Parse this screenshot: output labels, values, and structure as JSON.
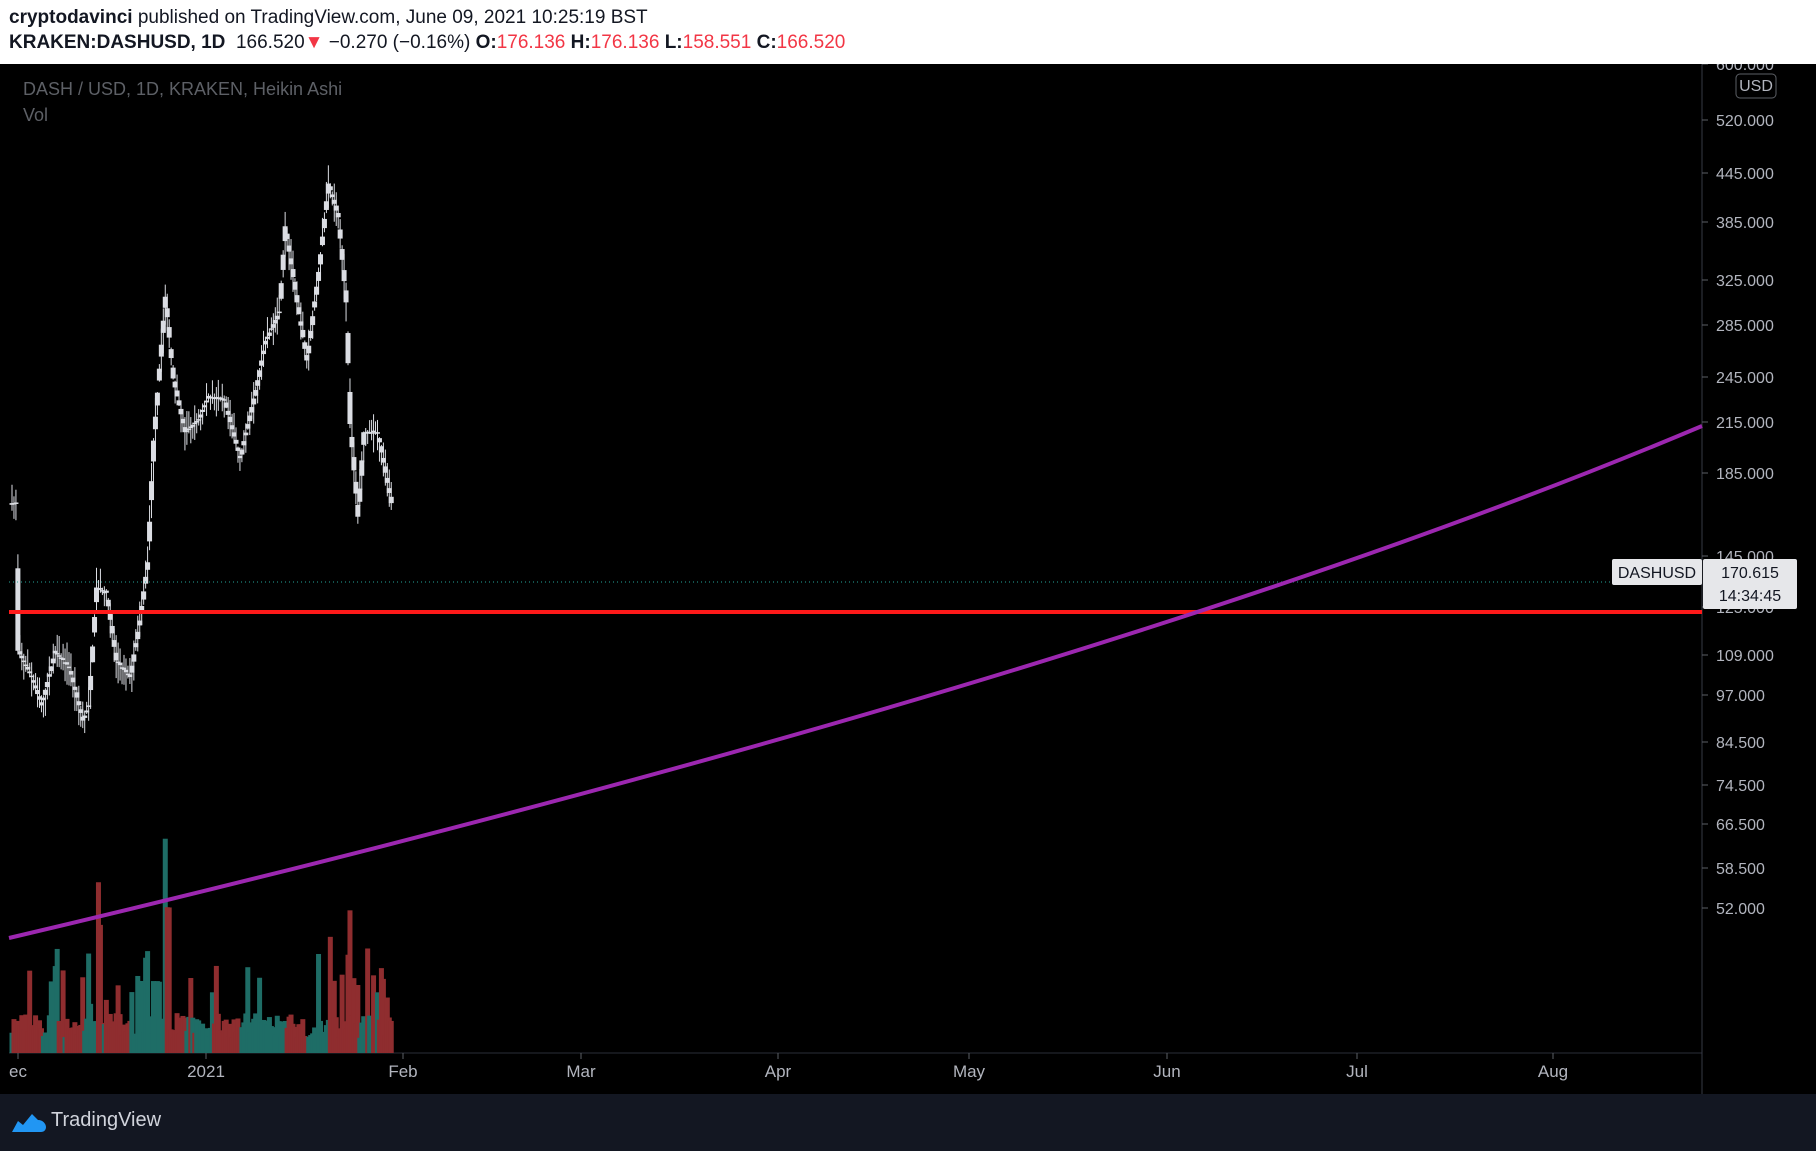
{
  "header": {
    "author": "cryptodavinci",
    "published_text": " published on TradingView.com, June 09, 2021 10:25:19 BST",
    "symbol": "KRAKEN:DASHUSD, 1D",
    "last": "166.520",
    "change": "−0.270 (−0.16%)",
    "o_label": "O:",
    "o_val": "176.136",
    "h_label": "H:",
    "h_val": "176.136",
    "l_label": "L:",
    "l_val": "158.551",
    "c_label": "C:",
    "c_val": "166.520"
  },
  "legend": {
    "title": "DASH / USD, 1D, KRAKEN, Heikin Ashi",
    "volume": "Vol"
  },
  "colors": {
    "candle_body": "#dbdde3",
    "vol_up": "#1e6d66",
    "vol_down": "#8f2d2f",
    "support_line": "#ff1a1a",
    "trend_line": "#9c27b0",
    "price_line": "#26a69a"
  },
  "price_axis": {
    "currency": "USD",
    "labels": [
      "600.000",
      "520.000",
      "445.000",
      "385.000",
      "325.000",
      "285.000",
      "245.000",
      "215.000",
      "185.000",
      "145.000",
      "125.000",
      "109.000",
      "97.000",
      "84.500",
      "74.500",
      "66.500",
      "58.500",
      "52.000"
    ]
  },
  "time_axis": {
    "labels": [
      "ec",
      "2021",
      "Feb",
      "Mar",
      "Apr",
      "May",
      "Jun",
      "Jul",
      "Aug"
    ]
  },
  "price_tag": {
    "symbol": "DASHUSD",
    "price": "170.615",
    "countdown": "14:34:45"
  },
  "footer": {
    "brand": "TradingView"
  },
  "chart_data": {
    "type": "candlestick",
    "title": "DASH / USD, 1D, KRAKEN, Heikin Ashi",
    "scale": "log",
    "ylim": [
      50,
      600
    ],
    "x_range": [
      "2020-12-01",
      "2021-08-31"
    ],
    "support_level": 155,
    "trend_line": [
      {
        "date": "2020-12-01",
        "value": 68
      },
      {
        "date": "2021-06-09",
        "value": 155
      },
      {
        "date": "2021-08-31",
        "value": 245
      }
    ],
    "current_price": 170.615,
    "close_series": [
      {
        "date": "2020-12-01",
        "value": 108
      },
      {
        "date": "2020-12-08",
        "value": 100
      },
      {
        "date": "2020-12-13",
        "value": 92
      },
      {
        "date": "2020-12-20",
        "value": 108
      },
      {
        "date": "2020-12-27",
        "value": 103
      },
      {
        "date": "2021-01-03",
        "value": 88
      },
      {
        "date": "2021-01-06",
        "value": 92
      },
      {
        "date": "2021-01-10",
        "value": 130
      },
      {
        "date": "2021-01-15",
        "value": 128
      },
      {
        "date": "2021-01-20",
        "value": 105
      },
      {
        "date": "2021-01-27",
        "value": 100
      },
      {
        "date": "2021-02-01",
        "value": 118
      },
      {
        "date": "2021-02-05",
        "value": 140
      },
      {
        "date": "2021-02-08",
        "value": 200
      },
      {
        "date": "2021-02-14",
        "value": 305
      },
      {
        "date": "2021-02-18",
        "value": 240
      },
      {
        "date": "2021-02-24",
        "value": 205
      },
      {
        "date": "2021-03-03",
        "value": 213
      },
      {
        "date": "2021-03-08",
        "value": 228
      },
      {
        "date": "2021-03-16",
        "value": 225
      },
      {
        "date": "2021-03-24",
        "value": 190
      },
      {
        "date": "2021-04-01",
        "value": 232
      },
      {
        "date": "2021-04-06",
        "value": 268
      },
      {
        "date": "2021-04-13",
        "value": 292
      },
      {
        "date": "2021-04-16",
        "value": 375
      },
      {
        "date": "2021-04-22",
        "value": 300
      },
      {
        "date": "2021-04-27",
        "value": 253
      },
      {
        "date": "2021-05-03",
        "value": 328
      },
      {
        "date": "2021-05-08",
        "value": 425
      },
      {
        "date": "2021-05-13",
        "value": 385
      },
      {
        "date": "2021-05-17",
        "value": 300
      },
      {
        "date": "2021-05-19",
        "value": 210
      },
      {
        "date": "2021-05-23",
        "value": 160
      },
      {
        "date": "2021-05-26",
        "value": 205
      },
      {
        "date": "2021-06-02",
        "value": 205
      },
      {
        "date": "2021-06-09",
        "value": 166.52
      }
    ],
    "volume_peaks": [
      {
        "date": "2021-01-11",
        "note": "spike"
      },
      {
        "date": "2021-02-14",
        "note": "largest"
      },
      {
        "date": "2021-05-19",
        "note": "spike"
      }
    ]
  }
}
